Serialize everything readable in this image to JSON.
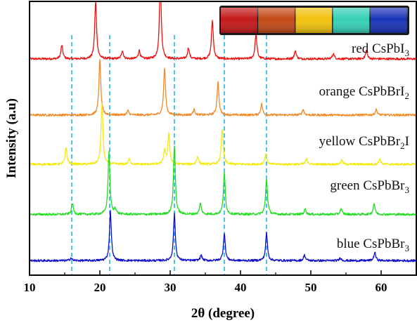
{
  "chart_data": {
    "type": "line",
    "title": "",
    "xlabel": "2θ (degree)",
    "ylabel": "Intensity (a.u)",
    "xlim": [
      10,
      65
    ],
    "x_ticks": [
      10,
      20,
      30,
      40,
      50,
      60
    ],
    "y_ticks": false,
    "grid": false,
    "legend": "inline-right",
    "reference_lines": {
      "x": [
        16.0,
        21.4,
        30.6,
        37.7,
        43.7
      ],
      "color": "#1fb6e6",
      "style": "dashed"
    },
    "series": [
      {
        "name_parts": [
          [
            "red CsPbI",
            ""
          ],
          [
            "3",
            "sub"
          ]
        ],
        "color": "#ee1111",
        "baseline": 0.79,
        "peaks": [
          [
            14.6,
            0.05
          ],
          [
            19.4,
            0.21
          ],
          [
            23.2,
            0.03
          ],
          [
            25.6,
            0.03
          ],
          [
            28.6,
            0.28
          ],
          [
            32.6,
            0.04
          ],
          [
            36.0,
            0.14
          ],
          [
            42.2,
            0.09
          ],
          [
            47.8,
            0.03
          ],
          [
            53.2,
            0.02
          ],
          [
            57.9,
            0.03
          ]
        ]
      },
      {
        "name_parts": [
          [
            "orange CsPbBrI",
            ""
          ],
          [
            "2",
            "sub"
          ]
        ],
        "color": "#f08a28",
        "baseline": 0.585,
        "peaks": [
          [
            20.0,
            0.2
          ],
          [
            24.0,
            0.015
          ],
          [
            29.2,
            0.17
          ],
          [
            33.4,
            0.02
          ],
          [
            36.8,
            0.12
          ],
          [
            43.0,
            0.04
          ],
          [
            48.9,
            0.02
          ],
          [
            59.3,
            0.02
          ]
        ]
      },
      {
        "name_parts": [
          [
            "yellow CsPbBr",
            ""
          ],
          [
            "2",
            "sub"
          ],
          [
            "I",
            ""
          ]
        ],
        "color": "#f2ea10",
        "baseline": 0.405,
        "peaks": [
          [
            15.2,
            0.06
          ],
          [
            20.3,
            0.22
          ],
          [
            24.2,
            0.02
          ],
          [
            29.2,
            0.05
          ],
          [
            29.8,
            0.11
          ],
          [
            33.9,
            0.03
          ],
          [
            37.4,
            0.13
          ],
          [
            43.6,
            0.04
          ],
          [
            49.4,
            0.02
          ],
          [
            54.4,
            0.015
          ],
          [
            59.8,
            0.02
          ]
        ]
      },
      {
        "name_parts": [
          [
            "green CsPbBr",
            ""
          ],
          [
            "3",
            "sub"
          ]
        ],
        "color": "#22dd22",
        "baseline": 0.222,
        "peaks": [
          [
            16.1,
            0.04
          ],
          [
            21.3,
            0.23
          ],
          [
            22.2,
            0.02
          ],
          [
            30.6,
            0.25
          ],
          [
            34.3,
            0.04
          ],
          [
            37.7,
            0.15
          ],
          [
            43.7,
            0.13
          ],
          [
            49.2,
            0.02
          ],
          [
            54.3,
            0.02
          ],
          [
            59.0,
            0.04
          ]
        ]
      },
      {
        "name_parts": [
          [
            "blue CsPbBr",
            ""
          ],
          [
            "3",
            "sub"
          ]
        ],
        "color": "#1010cc",
        "baseline": 0.053,
        "peaks": [
          [
            15.9,
            0.01
          ],
          [
            21.5,
            0.18
          ],
          [
            30.6,
            0.17
          ],
          [
            34.4,
            0.02
          ],
          [
            37.7,
            0.1
          ],
          [
            43.7,
            0.1
          ],
          [
            49.1,
            0.02
          ],
          [
            54.2,
            0.01
          ],
          [
            59.1,
            0.03
          ]
        ]
      }
    ]
  },
  "inset_photo": {
    "description_icon": "colored-sample-strip",
    "swatches": [
      "#c41a1a",
      "#c44a18",
      "#f2c20e",
      "#36d0b6",
      "#1a34b8"
    ]
  }
}
